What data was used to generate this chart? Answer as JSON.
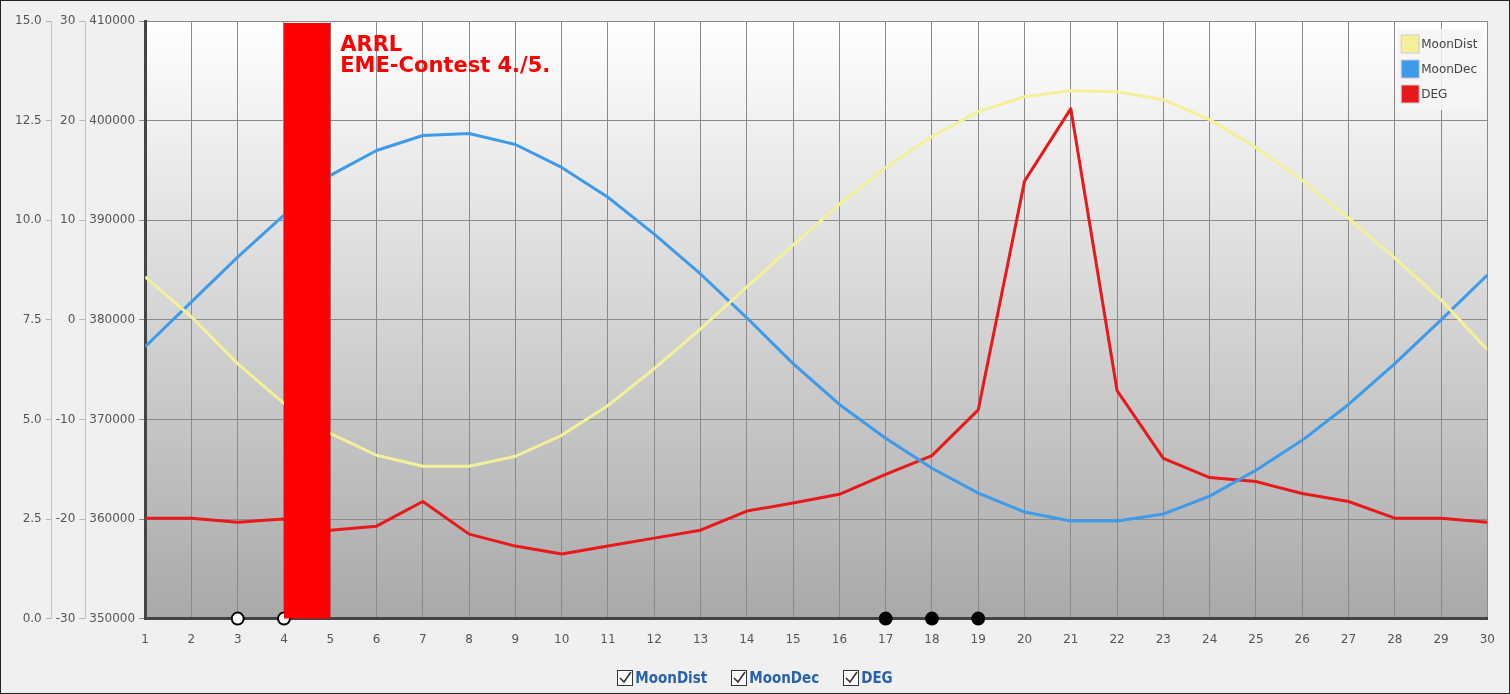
{
  "chart_data": {
    "type": "line",
    "x": [
      1,
      2,
      3,
      4,
      5,
      6,
      7,
      8,
      9,
      10,
      11,
      12,
      13,
      14,
      15,
      16,
      17,
      18,
      19,
      20,
      21,
      22,
      23,
      24,
      25,
      26,
      27,
      28,
      29,
      30
    ],
    "series": [
      {
        "name": "MoonDist",
        "color": "#f4f09a",
        "axis": "y",
        "values": [
          384300,
          380300,
          375600,
          371600,
          368600,
          366400,
          365300,
          365300,
          366300,
          368400,
          371400,
          375100,
          379100,
          383300,
          387500,
          391600,
          395300,
          398400,
          400900,
          402400,
          403000,
          402900,
          402100,
          400100,
          397300,
          394000,
          390200,
          386200,
          382000,
          377000
        ]
      },
      {
        "name": "MoonDec",
        "color": "#3d9be9",
        "axis": "y2",
        "values": [
          -2.7,
          1.8,
          6.3,
          10.5,
          14.5,
          17.0,
          18.5,
          18.7,
          17.6,
          15.3,
          12.3,
          8.6,
          4.6,
          0.2,
          -4.4,
          -8.5,
          -11.9,
          -14.9,
          -17.4,
          -19.3,
          -20.2,
          -20.2,
          -19.5,
          -17.7,
          -15.1,
          -12.1,
          -8.5,
          -4.4,
          0.0,
          4.5
        ]
      },
      {
        "name": "DEG",
        "color": "#e8191a",
        "axis": "y3",
        "values": [
          2.52,
          2.52,
          2.42,
          2.5,
          2.22,
          2.32,
          2.94,
          2.12,
          1.82,
          1.62,
          1.82,
          2.02,
          2.22,
          2.7,
          2.9,
          3.12,
          3.62,
          4.09,
          5.24,
          10.98,
          12.8,
          5.72,
          4.02,
          3.54,
          3.44,
          3.14,
          2.94,
          2.52,
          2.52,
          2.42
        ]
      },
      {
        "type": "scatter",
        "marker": "circle",
        "axis": "y3",
        "x": [
          3,
          4,
          17,
          18,
          19
        ],
        "values": [
          0,
          0,
          0,
          0,
          0
        ],
        "colors": [
          "#ffffff",
          "#ffffff",
          "#000000",
          "#000000",
          "#000000"
        ]
      }
    ],
    "xlim": [
      1,
      30
    ],
    "xticks": [
      1,
      2,
      3,
      4,
      5,
      6,
      7,
      8,
      9,
      10,
      11,
      12,
      13,
      14,
      15,
      16,
      17,
      18,
      19,
      20,
      21,
      22,
      23,
      24,
      25,
      26,
      27,
      28,
      29,
      30
    ],
    "ylim": [
      350000,
      410000
    ],
    "yticks": [
      350000,
      360000,
      370000,
      380000,
      390000,
      400000,
      410000
    ],
    "y2lim": [
      -30,
      30
    ],
    "y2ticks": [
      -30,
      -20,
      -10,
      0,
      10,
      20,
      30
    ],
    "y3lim": [
      0,
      15
    ],
    "y3ticks": [
      {
        "value": 0,
        "label": "0.0"
      },
      {
        "value": 2.5,
        "label": "2.5"
      },
      {
        "value": 5,
        "label": "5.0"
      },
      {
        "value": 7.5,
        "label": "7.5"
      },
      {
        "value": 10,
        "label": "10.0"
      },
      {
        "value": 12.5,
        "label": "12.5"
      },
      {
        "value": 15,
        "label": "15.0"
      }
    ],
    "bands": [
      {
        "axis": "x",
        "from": 4,
        "to": 5,
        "label": "ARRL\nEME-Contest 4./5.",
        "color": "#ff0000"
      }
    ],
    "grid": true,
    "legend": "top right",
    "marker": "none",
    "line_style": "solid"
  }
}
